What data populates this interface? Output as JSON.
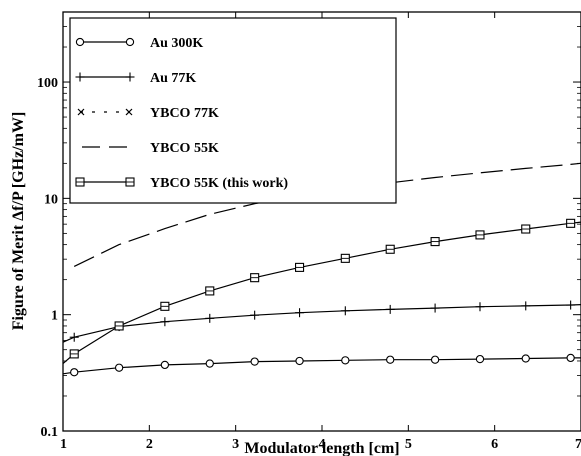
{
  "chart_data": {
    "type": "line",
    "xlabel": "Modulator length [cm]",
    "ylabel": "Figure of Merit Δf/P [GHz/mW]",
    "xlim": [
      1,
      7
    ],
    "ylim": [
      0.1,
      400
    ],
    "yscale": "log",
    "x_ticks": [
      "1",
      "2",
      "3",
      "4",
      "5",
      "6",
      "7"
    ],
    "y_ticks": [
      "0.1",
      "1",
      "10",
      "100"
    ],
    "grid": false,
    "legend_position": "top-left",
    "series": [
      {
        "name": "Au 300K",
        "marker": "circle",
        "line": "solid",
        "x": [
          1.0,
          1.13,
          1.65,
          2.18,
          2.7,
          3.22,
          3.74,
          4.27,
          4.79,
          5.31,
          5.83,
          6.36,
          6.88,
          7.0
        ],
        "y": [
          0.31,
          0.32,
          0.35,
          0.37,
          0.38,
          0.395,
          0.4,
          0.405,
          0.41,
          0.41,
          0.415,
          0.42,
          0.425,
          0.425
        ]
      },
      {
        "name": "Au 77K",
        "marker": "plus",
        "line": "solid",
        "x": [
          1.0,
          1.13,
          1.65,
          2.18,
          2.7,
          3.22,
          3.74,
          4.27,
          4.79,
          5.31,
          5.83,
          6.36,
          6.88,
          7.0
        ],
        "y": [
          0.58,
          0.64,
          0.79,
          0.87,
          0.93,
          0.99,
          1.04,
          1.08,
          1.11,
          1.14,
          1.17,
          1.19,
          1.21,
          1.22
        ]
      },
      {
        "name": "YBCO 77K",
        "marker": "x",
        "line": "dotted",
        "x": [],
        "y": []
      },
      {
        "name": "YBCO 55K",
        "marker": "none",
        "line": "dashed",
        "x": [
          1.13,
          1.65,
          2.18,
          2.7,
          3.22,
          3.74,
          4.27,
          4.79,
          5.31,
          5.83,
          6.36,
          6.88,
          7.0
        ],
        "y": [
          2.6,
          4.0,
          5.5,
          7.3,
          9.0,
          10.6,
          12.1,
          13.6,
          15.1,
          16.6,
          18.1,
          19.6,
          20.0
        ]
      },
      {
        "name": "YBCO 55K (this work)",
        "marker": "square",
        "line": "solid",
        "x": [
          1.0,
          1.13,
          1.65,
          2.18,
          2.7,
          3.22,
          3.74,
          4.27,
          4.79,
          5.31,
          5.83,
          6.36,
          6.88,
          7.0
        ],
        "y": [
          0.38,
          0.46,
          0.8,
          1.18,
          1.6,
          2.08,
          2.55,
          3.05,
          3.65,
          4.25,
          4.85,
          5.45,
          6.1,
          6.25
        ]
      }
    ]
  }
}
